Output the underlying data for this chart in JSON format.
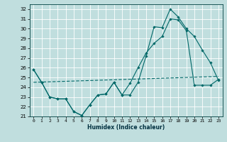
{
  "xlabel": "Humidex (Indice chaleur)",
  "bg_color": "#c0dede",
  "grid_color": "#ffffff",
  "line_color": "#006868",
  "xlim": [
    -0.5,
    23.5
  ],
  "ylim": [
    21,
    32.5
  ],
  "yticks": [
    21,
    22,
    23,
    24,
    25,
    26,
    27,
    28,
    29,
    30,
    31,
    32
  ],
  "xticks": [
    0,
    1,
    2,
    3,
    4,
    5,
    6,
    7,
    8,
    9,
    10,
    11,
    12,
    13,
    14,
    15,
    16,
    17,
    18,
    19,
    20,
    21,
    22,
    23
  ],
  "line1_x": [
    0,
    1,
    2,
    3,
    4,
    5,
    6,
    7,
    8,
    9,
    10,
    11,
    12,
    13,
    14,
    15,
    16,
    17,
    18,
    19,
    20,
    21,
    22,
    23
  ],
  "line1_y": [
    25.8,
    24.5,
    23.0,
    22.8,
    22.8,
    21.5,
    21.1,
    22.2,
    23.2,
    23.3,
    24.5,
    23.2,
    23.2,
    24.5,
    27.2,
    30.2,
    30.1,
    32.0,
    31.2,
    30.0,
    29.2,
    27.8,
    26.5,
    24.7
  ],
  "line2_x": [
    0,
    1,
    2,
    3,
    4,
    5,
    6,
    7,
    8,
    9,
    10,
    11,
    12,
    13,
    14,
    15,
    16,
    17,
    18,
    19,
    20,
    21,
    22,
    23
  ],
  "line2_y": [
    25.8,
    24.5,
    23.0,
    22.8,
    22.8,
    21.5,
    21.1,
    22.2,
    23.2,
    23.3,
    24.5,
    23.2,
    24.4,
    26.0,
    27.5,
    28.5,
    29.2,
    31.0,
    30.9,
    29.8,
    24.2,
    24.2,
    24.2,
    24.8
  ],
  "line3_x": [
    0,
    23
  ],
  "line3_y": [
    24.5,
    25.1
  ],
  "figsize": [
    3.2,
    2.0
  ],
  "dpi": 100
}
